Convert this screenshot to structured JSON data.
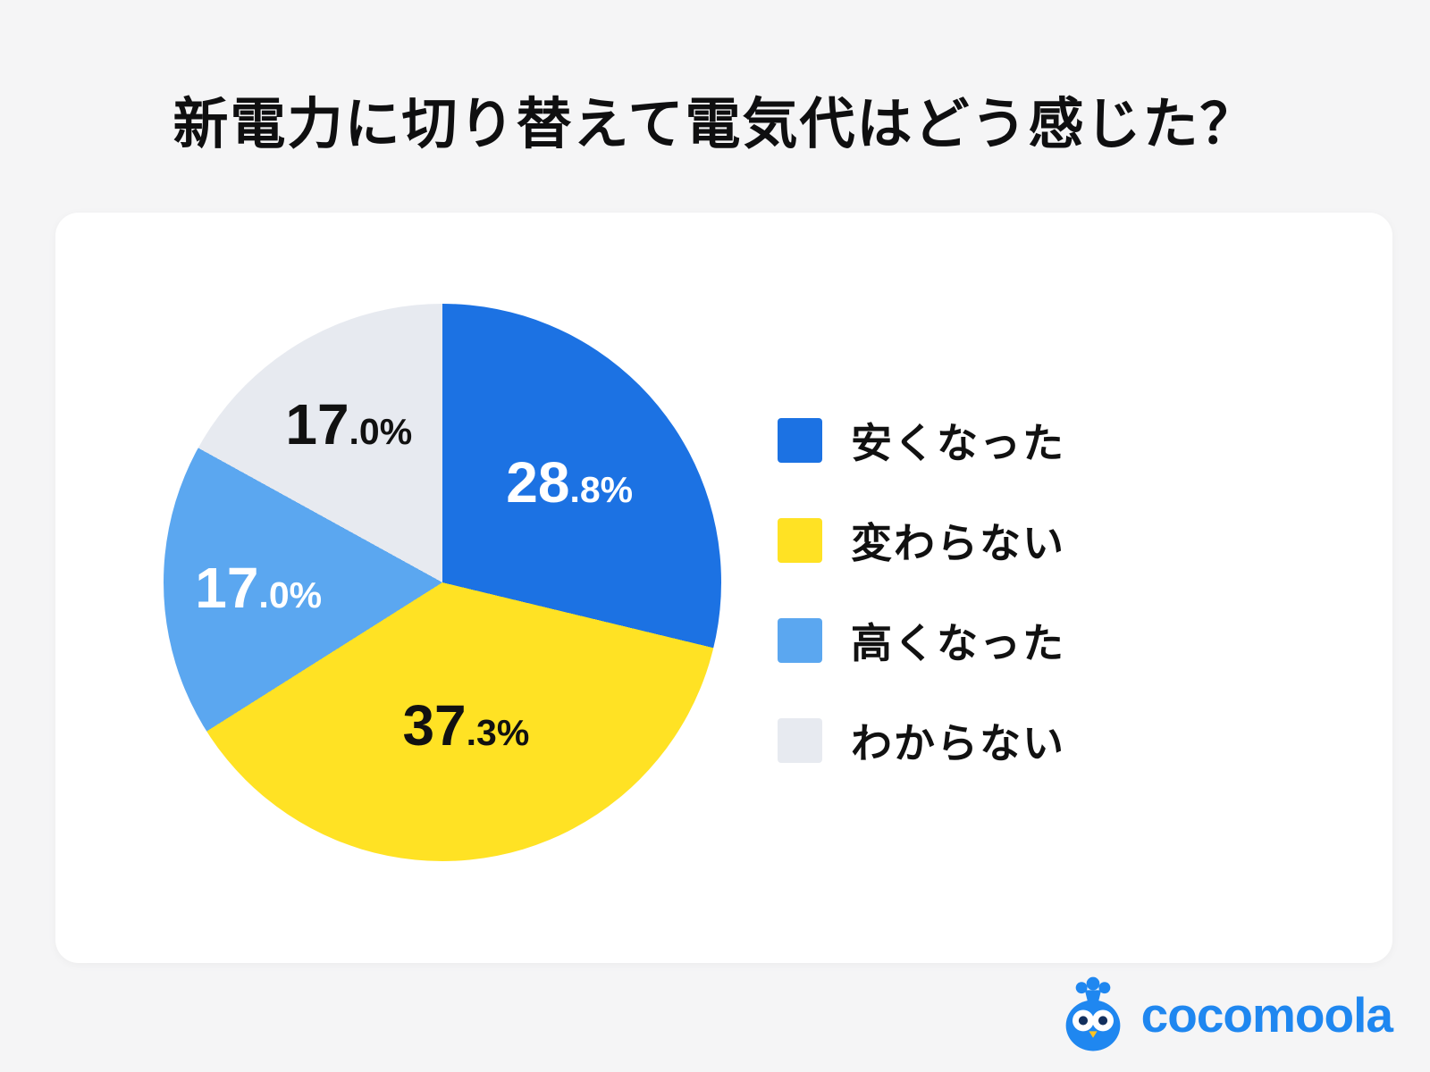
{
  "page": {
    "title": "新電力に切り替えて電気代はどう感じた？",
    "background_color": "#f5f5f6",
    "card_color": "#ffffff"
  },
  "chart_data": {
    "type": "pie",
    "title": "新電力に切り替えて電気代はどう感じた？",
    "direction": "clockwise",
    "start_angle_deg": 0,
    "legend_position": "right",
    "slices": [
      {
        "label": "安くなった",
        "value": 28.8,
        "display": "28.8%",
        "color": "#1c72e3",
        "label_color": "#ffffff"
      },
      {
        "label": "変わらない",
        "value": 37.3,
        "display": "37.3%",
        "color": "#ffe224",
        "label_color": "#111111"
      },
      {
        "label": "高くなった",
        "value": 17.0,
        "display": "17.0%",
        "color": "#5ba7f0",
        "label_color": "#ffffff"
      },
      {
        "label": "わからない",
        "value": 17.0,
        "display": "17.0%",
        "color": "#e7eaf0",
        "label_color": "#111111"
      }
    ]
  },
  "logo": {
    "text": "cocomoola",
    "color": "#1f87f0",
    "beak_color": "#ffc31e",
    "pupil_color": "#13305e",
    "mascot": "money-bag-owl-icon"
  }
}
